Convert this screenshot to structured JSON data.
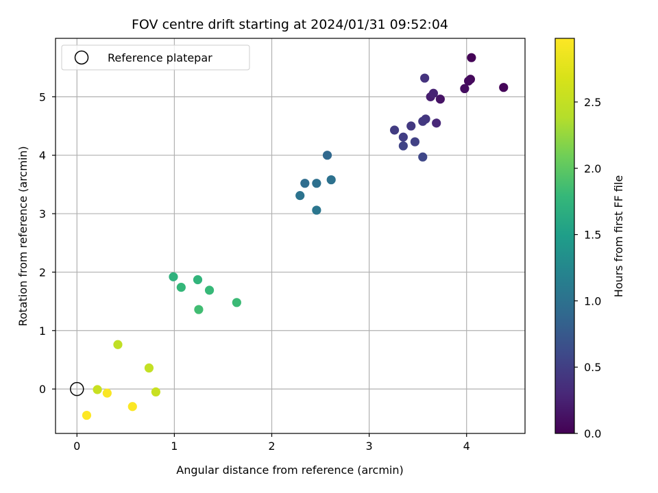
{
  "chart_data": {
    "type": "scatter",
    "title": "FOV centre drift starting at 2024/01/31 09:52:04",
    "xlabel": "Angular distance from reference (arcmin)",
    "ylabel": "Rotation from reference (arcmin)",
    "xlim": [
      -0.22,
      4.6
    ],
    "ylim": [
      -0.76,
      6.0
    ],
    "xticks": [
      0,
      1,
      2,
      3,
      4
    ],
    "yticks": [
      0,
      1,
      2,
      3,
      4,
      5
    ],
    "grid": true,
    "legend": {
      "location": "upper-left",
      "entries": [
        "Reference platepar"
      ]
    },
    "reference_point": {
      "x": 0,
      "y": 0,
      "label": "Reference platepar"
    },
    "colorbar": {
      "label": "Hours from first FF file",
      "colormap": "viridis",
      "range": [
        0.0,
        2.98
      ],
      "ticks": [
        0.0,
        0.5,
        1.0,
        1.5,
        2.0,
        2.5
      ],
      "tick_labels": [
        "0.0",
        "0.5",
        "1.0",
        "1.5",
        "2.0",
        "2.5"
      ]
    },
    "points": [
      {
        "x": 4.05,
        "y": 5.67,
        "hours": 0.02
      },
      {
        "x": 4.38,
        "y": 5.16,
        "hours": 0.04
      },
      {
        "x": 4.04,
        "y": 5.3,
        "hours": 0.06
      },
      {
        "x": 4.02,
        "y": 5.27,
        "hours": 0.08
      },
      {
        "x": 3.98,
        "y": 5.14,
        "hours": 0.1
      },
      {
        "x": 3.73,
        "y": 4.96,
        "hours": 0.14
      },
      {
        "x": 3.63,
        "y": 5.0,
        "hours": 0.22
      },
      {
        "x": 3.66,
        "y": 5.06,
        "hours": 0.26
      },
      {
        "x": 3.69,
        "y": 4.55,
        "hours": 0.3
      },
      {
        "x": 3.57,
        "y": 5.32,
        "hours": 0.4
      },
      {
        "x": 3.58,
        "y": 4.62,
        "hours": 0.42
      },
      {
        "x": 3.55,
        "y": 4.58,
        "hours": 0.44
      },
      {
        "x": 3.43,
        "y": 4.5,
        "hours": 0.45
      },
      {
        "x": 3.26,
        "y": 4.43,
        "hours": 0.48
      },
      {
        "x": 3.35,
        "y": 4.31,
        "hours": 0.5
      },
      {
        "x": 3.47,
        "y": 4.23,
        "hours": 0.52
      },
      {
        "x": 3.35,
        "y": 4.16,
        "hours": 0.55
      },
      {
        "x": 3.55,
        "y": 3.97,
        "hours": 0.58
      },
      {
        "x": 2.57,
        "y": 4.0,
        "hours": 0.9
      },
      {
        "x": 2.34,
        "y": 3.52,
        "hours": 0.95
      },
      {
        "x": 2.46,
        "y": 3.52,
        "hours": 0.98
      },
      {
        "x": 2.61,
        "y": 3.58,
        "hours": 1.0
      },
      {
        "x": 2.29,
        "y": 3.31,
        "hours": 1.02
      },
      {
        "x": 2.46,
        "y": 3.06,
        "hours": 1.05
      },
      {
        "x": 0.99,
        "y": 1.92,
        "hours": 1.72
      },
      {
        "x": 1.24,
        "y": 1.87,
        "hours": 1.75
      },
      {
        "x": 1.07,
        "y": 1.74,
        "hours": 1.78
      },
      {
        "x": 1.36,
        "y": 1.69,
        "hours": 1.8
      },
      {
        "x": 1.64,
        "y": 1.48,
        "hours": 1.82
      },
      {
        "x": 1.25,
        "y": 1.36,
        "hours": 1.85
      },
      {
        "x": 0.42,
        "y": 0.76,
        "hours": 2.48
      },
      {
        "x": 0.74,
        "y": 0.36,
        "hours": 2.5
      },
      {
        "x": 0.21,
        "y": -0.01,
        "hours": 2.55
      },
      {
        "x": 0.81,
        "y": -0.05,
        "hours": 2.55
      },
      {
        "x": 0.31,
        "y": -0.07,
        "hours": 2.95
      },
      {
        "x": 0.57,
        "y": -0.3,
        "hours": 2.96
      },
      {
        "x": 0.1,
        "y": -0.45,
        "hours": 2.98
      }
    ]
  }
}
